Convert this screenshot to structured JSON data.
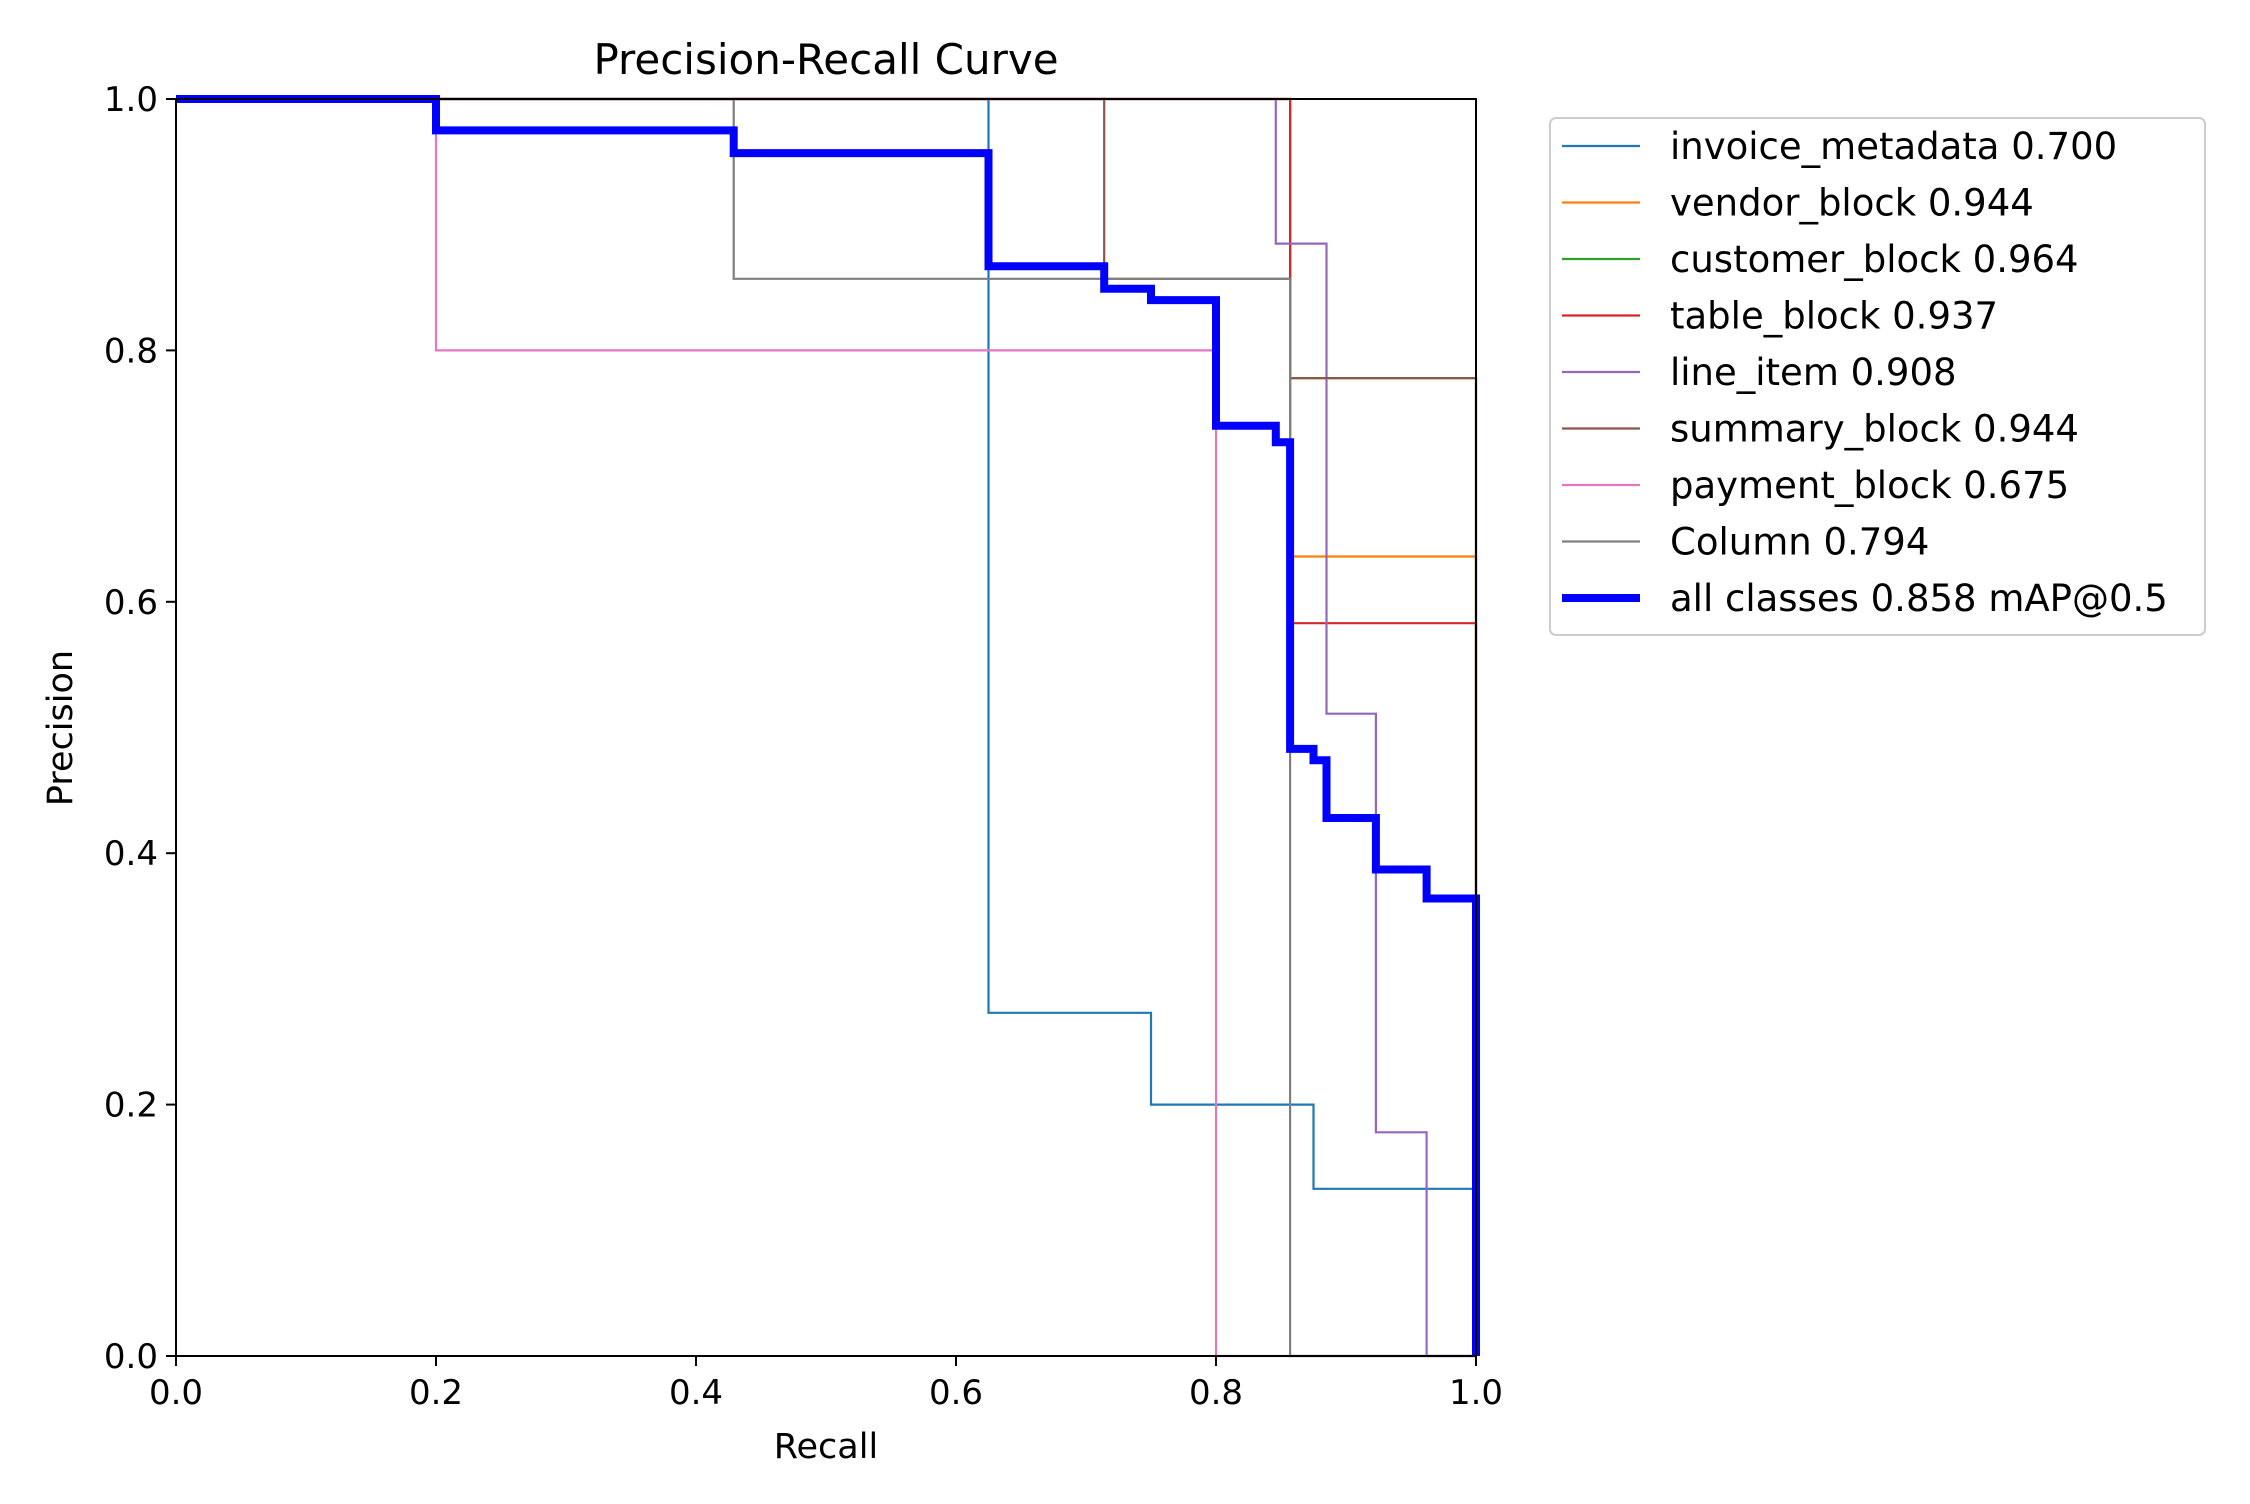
{
  "chart_data": {
    "type": "line",
    "title": "Precision-Recall Curve",
    "xlabel": "Recall",
    "ylabel": "Precision",
    "xlim": [
      0.0,
      1.0
    ],
    "ylim": [
      0.0,
      1.0
    ],
    "xticks": [
      "0.0",
      "0.2",
      "0.4",
      "0.6",
      "0.8",
      "1.0"
    ],
    "yticks": [
      "0.0",
      "0.2",
      "0.4",
      "0.6",
      "0.8",
      "1.0"
    ],
    "grid": false,
    "legend_placement": "outside-top-right",
    "series": [
      {
        "name": "invoice_metadata 0.700",
        "color": "#1f77b4",
        "points": [
          [
            0,
            1
          ],
          [
            0.625,
            1
          ],
          [
            0.625,
            0.273
          ],
          [
            0.75,
            0.273
          ],
          [
            0.75,
            0.2
          ],
          [
            0.875,
            0.2
          ],
          [
            0.875,
            0.133
          ],
          [
            1.0,
            0.133
          ],
          [
            1.0,
            0
          ]
        ]
      },
      {
        "name": "vendor_block 0.944",
        "color": "#ff7f0e",
        "points": [
          [
            0,
            1
          ],
          [
            0.857,
            1
          ],
          [
            0.857,
            0.636
          ],
          [
            1.0,
            0.636
          ],
          [
            1.0,
            0
          ]
        ]
      },
      {
        "name": "customer_block 0.964",
        "color": "#2ca02c",
        "points": [
          [
            0,
            1
          ],
          [
            0.857,
            1
          ],
          [
            0.857,
            0.778
          ],
          [
            1.0,
            0.778
          ],
          [
            1.0,
            0
          ]
        ]
      },
      {
        "name": "table_block 0.937",
        "color": "#d62728",
        "points": [
          [
            0,
            1
          ],
          [
            0.857,
            1
          ],
          [
            0.857,
            0.583
          ],
          [
            1.0,
            0.583
          ],
          [
            1.0,
            0
          ]
        ]
      },
      {
        "name": "line_item 0.908",
        "color": "#9467bd",
        "points": [
          [
            0,
            1
          ],
          [
            0.846,
            1
          ],
          [
            0.846,
            0.885
          ],
          [
            0.885,
            0.885
          ],
          [
            0.885,
            0.511
          ],
          [
            0.923,
            0.511
          ],
          [
            0.923,
            0.178
          ],
          [
            0.962,
            0.178
          ],
          [
            0.962,
            0
          ],
          [
            1.0,
            0
          ]
        ]
      },
      {
        "name": "summary_block 0.944",
        "color": "#8c564b",
        "points": [
          [
            0,
            1
          ],
          [
            0.714,
            1
          ],
          [
            0.714,
            0.857
          ],
          [
            0.857,
            0.857
          ],
          [
            0.857,
            0.778
          ],
          [
            1.0,
            0.778
          ],
          [
            1.0,
            0
          ]
        ]
      },
      {
        "name": "payment_block 0.675",
        "color": "#e377c2",
        "points": [
          [
            0,
            1
          ],
          [
            0.2,
            1
          ],
          [
            0.2,
            0.8
          ],
          [
            0.8,
            0.8
          ],
          [
            0.8,
            0
          ],
          [
            1.0,
            0
          ]
        ]
      },
      {
        "name": "Column 0.794",
        "color": "#7f7f7f",
        "points": [
          [
            0,
            1
          ],
          [
            0.429,
            1
          ],
          [
            0.429,
            0.857
          ],
          [
            0.857,
            0.857
          ],
          [
            0.857,
            0
          ],
          [
            1.0,
            0
          ]
        ]
      },
      {
        "name": "all classes 0.858 mAP@0.5",
        "color": "#0000ff",
        "bold": true,
        "points": [
          [
            0,
            1
          ],
          [
            0.2,
            1
          ],
          [
            0.2,
            0.975
          ],
          [
            0.429,
            0.975
          ],
          [
            0.429,
            0.957
          ],
          [
            0.625,
            0.957
          ],
          [
            0.625,
            0.867
          ],
          [
            0.714,
            0.867
          ],
          [
            0.714,
            0.849
          ],
          [
            0.75,
            0.849
          ],
          [
            0.75,
            0.84
          ],
          [
            0.8,
            0.84
          ],
          [
            0.8,
            0.74
          ],
          [
            0.846,
            0.74
          ],
          [
            0.846,
            0.727
          ],
          [
            0.857,
            0.727
          ],
          [
            0.857,
            0.483
          ],
          [
            0.875,
            0.483
          ],
          [
            0.875,
            0.474
          ],
          [
            0.885,
            0.474
          ],
          [
            0.885,
            0.428
          ],
          [
            0.923,
            0.428
          ],
          [
            0.923,
            0.387
          ],
          [
            0.962,
            0.387
          ],
          [
            0.962,
            0.364
          ],
          [
            1.0,
            0.364
          ],
          [
            1.0,
            0
          ]
        ]
      }
    ]
  }
}
